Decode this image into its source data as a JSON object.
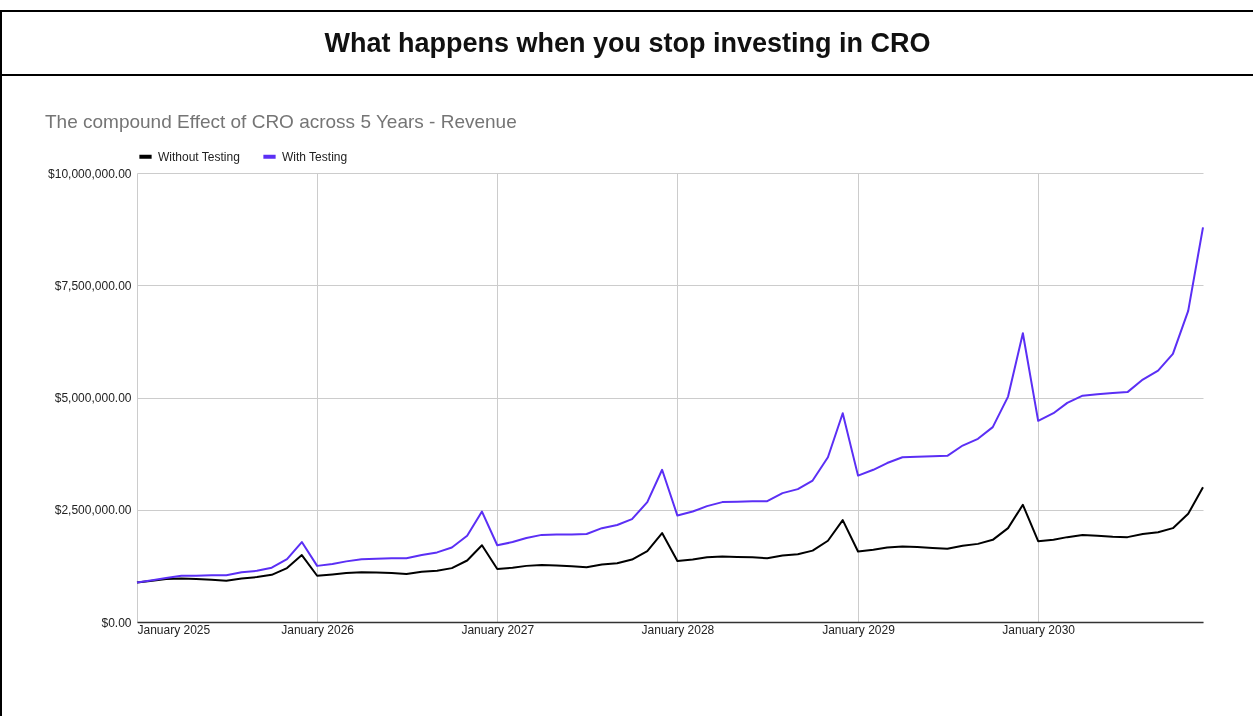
{
  "chart_data": {
    "type": "line",
    "title": "What happens when you stop investing in CRO",
    "subtitle": "The compound Effect of CRO across 5 Years - Revenue",
    "x": [
      "2025-01",
      "2025-02",
      "2025-03",
      "2025-04",
      "2025-05",
      "2025-06",
      "2025-07",
      "2025-08",
      "2025-09",
      "2025-10",
      "2025-11",
      "2025-12",
      "2026-01",
      "2026-02",
      "2026-03",
      "2026-04",
      "2026-05",
      "2026-06",
      "2026-07",
      "2026-08",
      "2026-09",
      "2026-10",
      "2026-11",
      "2026-12",
      "2027-01",
      "2027-02",
      "2027-03",
      "2027-04",
      "2027-05",
      "2027-06",
      "2027-07",
      "2027-08",
      "2027-09",
      "2027-10",
      "2027-11",
      "2027-12",
      "2028-01",
      "2028-02",
      "2028-03",
      "2028-04",
      "2028-05",
      "2028-06",
      "2028-07",
      "2028-08",
      "2028-09",
      "2028-10",
      "2028-11",
      "2028-12",
      "2029-01",
      "2029-02",
      "2029-03",
      "2029-04",
      "2029-05",
      "2029-06",
      "2029-07",
      "2029-08",
      "2029-09",
      "2029-10",
      "2029-11",
      "2029-12",
      "2030-01",
      "2030-02",
      "2030-03",
      "2030-04",
      "2030-05",
      "2030-06",
      "2030-07",
      "2030-08",
      "2030-09",
      "2030-10",
      "2030-11",
      "2030-12"
    ],
    "series": [
      {
        "name": "Without Testing",
        "color": "#000000",
        "values": [
          880000,
          920000,
          960000,
          970000,
          960000,
          940000,
          920000,
          970000,
          1000000,
          1050000,
          1200000,
          1490000,
          1030000,
          1060000,
          1090000,
          1110000,
          1100000,
          1090000,
          1070000,
          1120000,
          1140000,
          1200000,
          1370000,
          1710000,
          1180000,
          1210000,
          1250000,
          1270000,
          1260000,
          1240000,
          1220000,
          1280000,
          1310000,
          1390000,
          1580000,
          1980000,
          1360000,
          1390000,
          1440000,
          1460000,
          1450000,
          1440000,
          1420000,
          1480000,
          1510000,
          1590000,
          1810000,
          2270000,
          1570000,
          1610000,
          1660000,
          1680000,
          1670000,
          1650000,
          1630000,
          1700000,
          1740000,
          1830000,
          2090000,
          2610000,
          1800000,
          1830000,
          1890000,
          1940000,
          1920000,
          1900000,
          1890000,
          1960000,
          2000000,
          2090000,
          2410000,
          3000000
        ]
      },
      {
        "name": "With Testing",
        "color": "#5b2ff5",
        "values": [
          880000,
          930000,
          980000,
          1030000,
          1030000,
          1040000,
          1040000,
          1110000,
          1140000,
          1210000,
          1400000,
          1780000,
          1250000,
          1290000,
          1350000,
          1400000,
          1410000,
          1420000,
          1420000,
          1490000,
          1550000,
          1660000,
          1920000,
          2460000,
          1710000,
          1780000,
          1870000,
          1940000,
          1950000,
          1950000,
          1960000,
          2090000,
          2160000,
          2290000,
          2670000,
          3390000,
          2370000,
          2460000,
          2580000,
          2670000,
          2680000,
          2690000,
          2690000,
          2870000,
          2960000,
          3150000,
          3670000,
          4650000,
          3260000,
          3390000,
          3540000,
          3670000,
          3680000,
          3690000,
          3700000,
          3930000,
          4080000,
          4340000,
          5020000,
          6430000,
          4480000,
          4650000,
          4880000,
          5040000,
          5070000,
          5100000,
          5120000,
          5400000,
          5600000,
          5970000,
          6930000,
          8790000
        ]
      }
    ],
    "xlim": [
      "2025-01",
      "2030-12"
    ],
    "xticks": [
      {
        "value": "2025-01",
        "label": "January 2025"
      },
      {
        "value": "2026-01",
        "label": "January 2026"
      },
      {
        "value": "2027-01",
        "label": "January 2027"
      },
      {
        "value": "2028-01",
        "label": "January 2028"
      },
      {
        "value": "2029-01",
        "label": "January 2029"
      },
      {
        "value": "2030-01",
        "label": "January 2030"
      }
    ],
    "ylim": [
      0,
      10000000
    ],
    "yticks": [
      {
        "value": 0,
        "label": "$0.00"
      },
      {
        "value": 2500000,
        "label": "$2,500,000.00"
      },
      {
        "value": 5000000,
        "label": "$5,000,000.00"
      },
      {
        "value": 7500000,
        "label": "$7,500,000.00"
      },
      {
        "value": 10000000,
        "label": "$10,000,000.00"
      }
    ],
    "grid": true,
    "legend": "top",
    "marker": "none",
    "line_style": "solid"
  }
}
